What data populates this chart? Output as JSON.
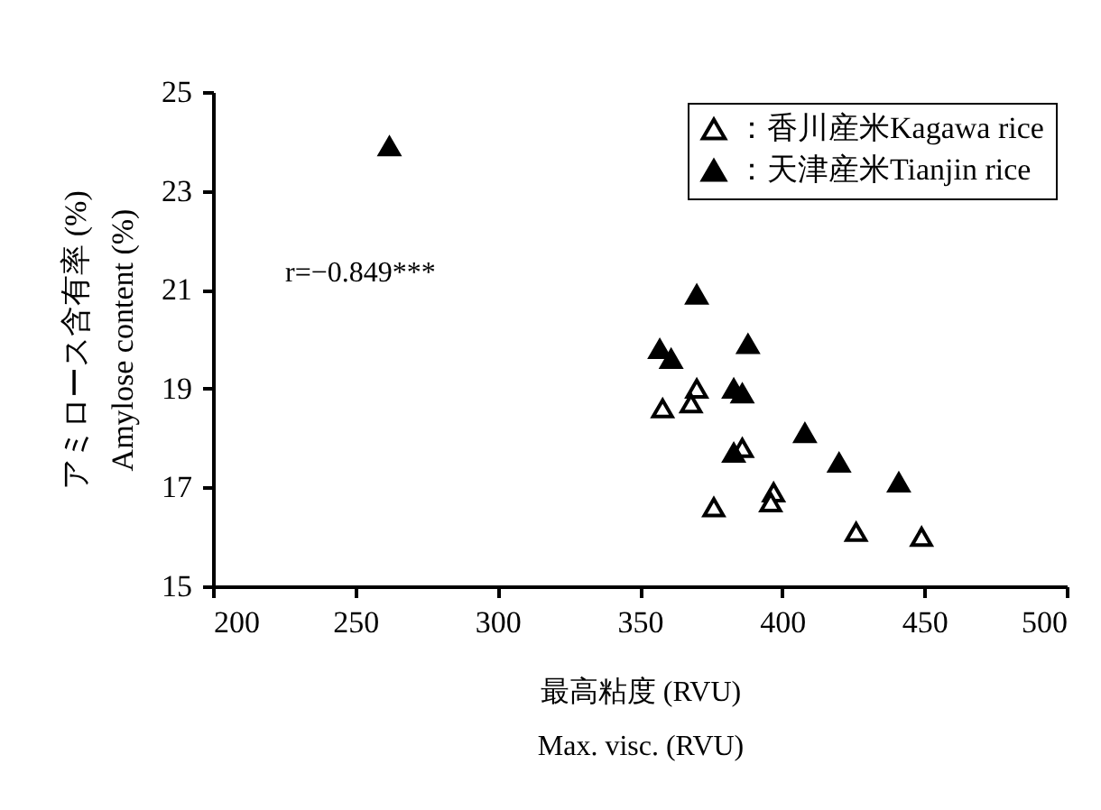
{
  "chart_data": {
    "type": "scatter",
    "xlabel": "最高粘度 (RVU)\nMax. visc. (RVU)",
    "ylabel": "アミロース含有率 (%)\nAmylose content (%)",
    "xlim": [
      200,
      500
    ],
    "xticks": [
      200,
      250,
      300,
      350,
      400,
      450,
      500
    ],
    "ylim": [
      15,
      25
    ],
    "yticks": [
      15,
      17,
      19,
      21,
      23,
      25
    ],
    "grid": false,
    "legend": "top right",
    "marker": "triangle",
    "annotations": [
      "r=−0.849***"
    ],
    "series": [
      {
        "name": "：香川産米Kagawa rice",
        "color": "#ffffff",
        "x": [
          370,
          358,
          368,
          386,
          376,
          397,
          396,
          426,
          449
        ],
        "values": [
          19.0,
          18.6,
          18.7,
          17.8,
          16.6,
          16.9,
          16.7,
          16.1,
          16.0
        ]
      },
      {
        "name": "：天津産米Tianjin rice",
        "color": "#000000",
        "x": [
          262,
          370,
          357,
          361,
          388,
          383,
          386,
          408,
          383,
          420,
          441
        ],
        "values": [
          23.9,
          20.9,
          19.8,
          19.6,
          19.9,
          19.0,
          18.9,
          18.1,
          17.7,
          17.5,
          17.1
        ]
      }
    ]
  }
}
